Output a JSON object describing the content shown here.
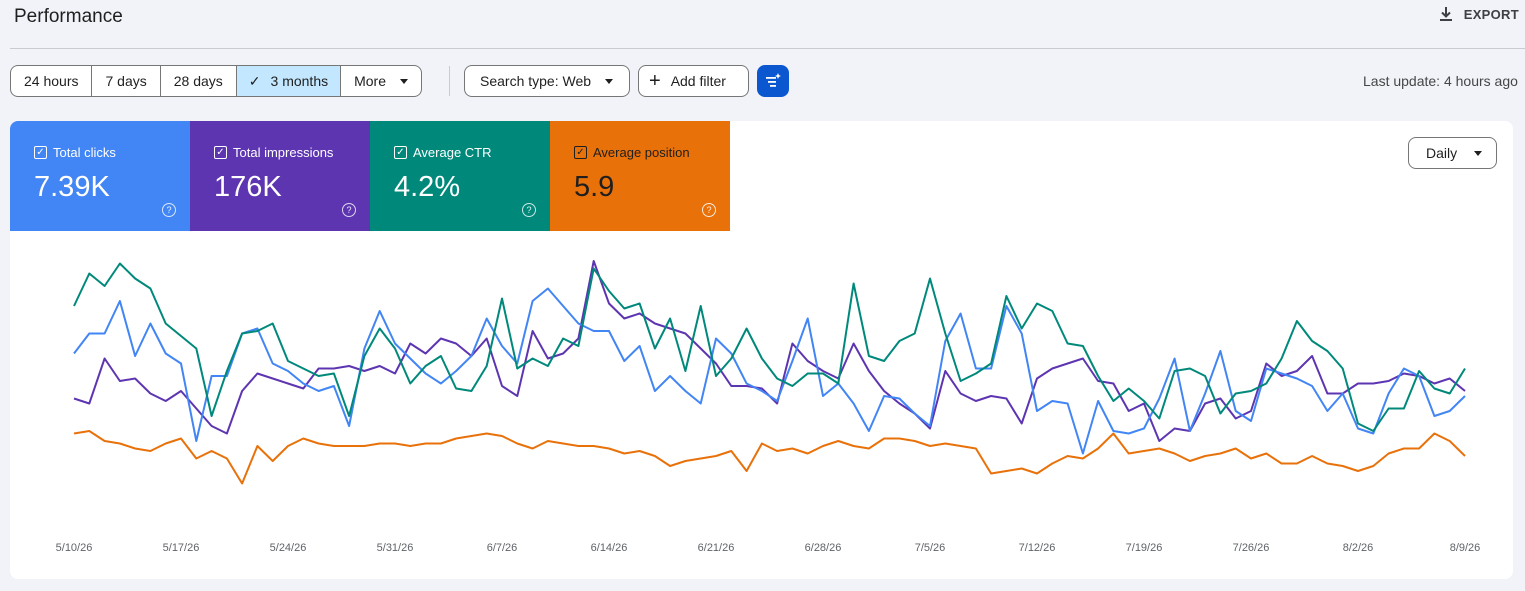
{
  "header": {
    "title": "Performance",
    "export_label": "EXPORT"
  },
  "toolbar": {
    "ranges": [
      "24 hours",
      "7 days",
      "28 days",
      "3 months",
      "More"
    ],
    "selected_range": "3 months",
    "search_type": "Search type: Web",
    "add_filter": "Add filter",
    "last_update": "Last update: 4 hours ago"
  },
  "metrics": [
    {
      "label": "Total clicks",
      "value": "7.39K",
      "color": "#4285f4",
      "checked": true
    },
    {
      "label": "Total impressions",
      "value": "176K",
      "color": "#5e35b1",
      "checked": true
    },
    {
      "label": "Average CTR",
      "value": "4.2%",
      "color": "#00897b",
      "checked": true
    },
    {
      "label": "Average position",
      "value": "5.9",
      "color": "#e8710a",
      "checked": true
    }
  ],
  "granularity": "Daily",
  "chart_data": {
    "type": "line",
    "x_labels": [
      "5/10/26",
      "5/17/26",
      "5/24/26",
      "5/31/26",
      "6/7/26",
      "6/14/26",
      "6/21/26",
      "6/28/26",
      "7/5/26",
      "7/12/26",
      "7/19/26",
      "7/26/26",
      "8/2/26",
      "8/9/26"
    ],
    "grid": false,
    "legend": "metric cards (top)",
    "series": [
      {
        "name": "Total impressions",
        "color": "#5e35b1",
        "values": [
          0.45,
          0.43,
          0.61,
          0.52,
          0.53,
          0.47,
          0.44,
          0.48,
          0.41,
          0.34,
          0.31,
          0.48,
          0.55,
          0.53,
          0.51,
          0.49,
          0.57,
          0.57,
          0.58,
          0.56,
          0.58,
          0.55,
          0.67,
          0.63,
          0.69,
          0.67,
          0.62,
          0.69,
          0.5,
          0.46,
          0.72,
          0.61,
          0.63,
          0.69,
          1.0,
          0.83,
          0.77,
          0.79,
          0.75,
          0.73,
          0.71,
          0.65,
          0.59,
          0.5,
          0.5,
          0.49,
          0.43,
          0.67,
          0.6,
          0.56,
          0.53,
          0.67,
          0.56,
          0.48,
          0.43,
          0.39,
          0.33,
          0.56,
          0.47,
          0.44,
          0.46,
          0.45,
          0.35,
          0.53,
          0.57,
          0.59,
          0.61,
          0.52,
          0.51,
          0.4,
          0.43,
          0.28,
          0.33,
          0.32,
          0.43,
          0.45,
          0.37,
          0.4,
          0.59,
          0.54,
          0.56,
          0.62,
          0.47,
          0.47,
          0.51,
          0.51,
          0.52,
          0.55,
          0.54,
          0.51,
          0.53,
          0.48
        ]
      },
      {
        "name": "Total clicks",
        "color": "#4285f4",
        "values": [
          0.63,
          0.71,
          0.71,
          0.84,
          0.62,
          0.75,
          0.63,
          0.59,
          0.28,
          0.54,
          0.54,
          0.71,
          0.73,
          0.59,
          0.56,
          0.51,
          0.48,
          0.5,
          0.34,
          0.65,
          0.8,
          0.67,
          0.61,
          0.55,
          0.51,
          0.56,
          0.62,
          0.77,
          0.66,
          0.59,
          0.84,
          0.89,
          0.82,
          0.75,
          0.72,
          0.72,
          0.6,
          0.66,
          0.48,
          0.54,
          0.48,
          0.43,
          0.69,
          0.63,
          0.51,
          0.48,
          0.44,
          0.6,
          0.77,
          0.46,
          0.51,
          0.43,
          0.32,
          0.46,
          0.45,
          0.39,
          0.34,
          0.68,
          0.79,
          0.57,
          0.57,
          0.82,
          0.71,
          0.4,
          0.44,
          0.43,
          0.23,
          0.44,
          0.32,
          0.31,
          0.33,
          0.45,
          0.61,
          0.32,
          0.47,
          0.64,
          0.4,
          0.36,
          0.57,
          0.55,
          0.53,
          0.5,
          0.4,
          0.47,
          0.33,
          0.31,
          0.47,
          0.57,
          0.54,
          0.38,
          0.4,
          0.46
        ]
      },
      {
        "name": "Average CTR",
        "color": "#00897b",
        "values": [
          0.82,
          0.95,
          0.9,
          0.99,
          0.93,
          0.89,
          0.75,
          0.7,
          0.65,
          0.38,
          0.56,
          0.71,
          0.72,
          0.75,
          0.6,
          0.57,
          0.54,
          0.55,
          0.38,
          0.62,
          0.73,
          0.65,
          0.51,
          0.58,
          0.62,
          0.49,
          0.48,
          0.58,
          0.85,
          0.57,
          0.61,
          0.58,
          0.69,
          0.66,
          0.97,
          0.88,
          0.81,
          0.83,
          0.65,
          0.77,
          0.56,
          0.82,
          0.54,
          0.61,
          0.73,
          0.61,
          0.53,
          0.5,
          0.55,
          0.55,
          0.51,
          0.91,
          0.62,
          0.6,
          0.68,
          0.71,
          0.93,
          0.71,
          0.52,
          0.55,
          0.59,
          0.86,
          0.73,
          0.83,
          0.8,
          0.67,
          0.66,
          0.54,
          0.44,
          0.49,
          0.44,
          0.37,
          0.56,
          0.57,
          0.54,
          0.39,
          0.47,
          0.48,
          0.51,
          0.61,
          0.76,
          0.68,
          0.64,
          0.57,
          0.35,
          0.32,
          0.41,
          0.41,
          0.56,
          0.49,
          0.47,
          0.57
        ]
      },
      {
        "name": "Average position",
        "color": "#e8710a",
        "values": [
          0.31,
          0.32,
          0.28,
          0.27,
          0.25,
          0.24,
          0.27,
          0.29,
          0.21,
          0.24,
          0.21,
          0.11,
          0.26,
          0.2,
          0.26,
          0.29,
          0.27,
          0.26,
          0.26,
          0.26,
          0.27,
          0.27,
          0.26,
          0.27,
          0.27,
          0.29,
          0.3,
          0.31,
          0.3,
          0.27,
          0.25,
          0.28,
          0.27,
          0.26,
          0.26,
          0.25,
          0.23,
          0.24,
          0.22,
          0.18,
          0.2,
          0.21,
          0.22,
          0.24,
          0.16,
          0.27,
          0.24,
          0.25,
          0.23,
          0.26,
          0.28,
          0.26,
          0.25,
          0.29,
          0.29,
          0.28,
          0.26,
          0.27,
          0.26,
          0.25,
          0.15,
          0.16,
          0.17,
          0.15,
          0.19,
          0.22,
          0.21,
          0.25,
          0.31,
          0.23,
          0.24,
          0.25,
          0.23,
          0.2,
          0.22,
          0.23,
          0.25,
          0.21,
          0.23,
          0.19,
          0.19,
          0.22,
          0.19,
          0.18,
          0.16,
          0.18,
          0.23,
          0.25,
          0.25,
          0.31,
          0.28,
          0.22
        ]
      }
    ]
  }
}
